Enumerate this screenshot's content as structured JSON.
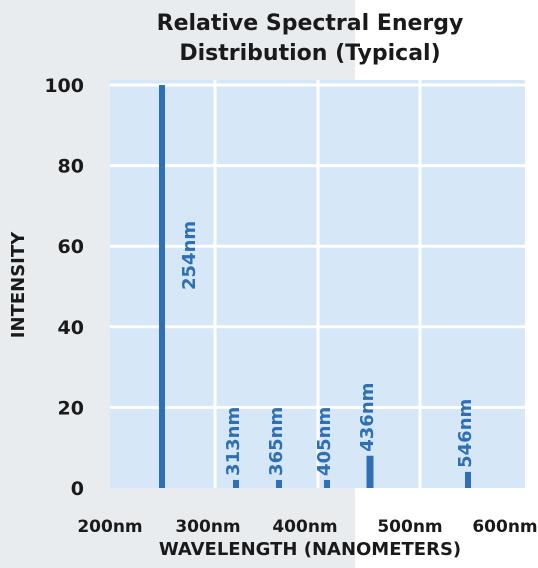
{
  "chart_data": {
    "type": "bar",
    "title_line1": "Relative Spectral Energy",
    "title_line2": "Distribution (Typical)",
    "xlabel": "WAVELENGTH (NANOMETERS)",
    "ylabel": "INTENSITY",
    "y_ticks": [
      "0",
      "20",
      "40",
      "60",
      "80",
      "100"
    ],
    "x_ticks": [
      "200nm",
      "300nm",
      "400nm",
      "500nm",
      "600nm"
    ],
    "ylim": [
      0,
      100
    ],
    "grid": true,
    "colors": {
      "page_bg_left": "#e8ecef",
      "page_bg_right": "#ffffff",
      "plot_bg": "#d6e7f7",
      "grid": "#ffffff",
      "bar": "#2e6fb5",
      "text": "#1a1a1a"
    },
    "bars": [
      {
        "label": "254nm",
        "value": 100
      },
      {
        "label": "313nm",
        "value": 2
      },
      {
        "label": "365nm",
        "value": 2
      },
      {
        "label": "405nm",
        "value": 2
      },
      {
        "label": "436nm",
        "value": 8
      },
      {
        "label": "546nm",
        "value": 4
      }
    ]
  }
}
